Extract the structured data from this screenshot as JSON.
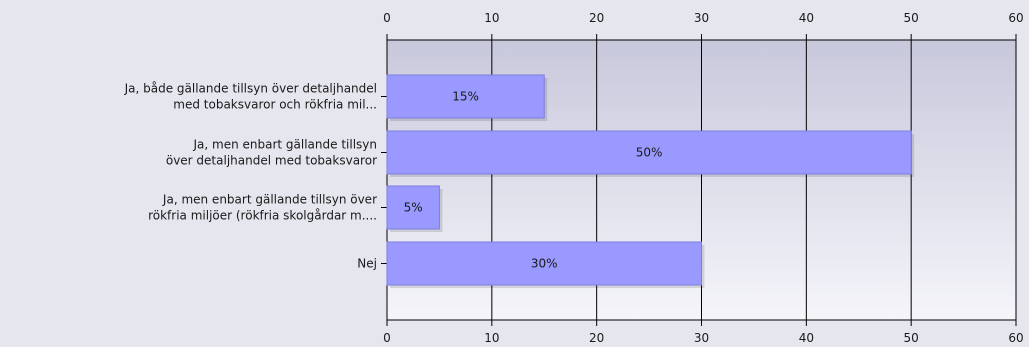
{
  "chart_data": {
    "type": "bar",
    "orientation": "horizontal",
    "categories": [
      [
        "Ja, både gällande tillsyn över detaljhandel",
        "med tobaksvaror och rökfria mil..."
      ],
      [
        "Ja, men enbart gällande tillsyn",
        "över detaljhandel med tobaksvaror"
      ],
      [
        "Ja, men enbart gällande tillsyn över",
        "rökfria miljöer (rökfria skolgårdar m...."
      ],
      [
        "Nej"
      ]
    ],
    "values": [
      15,
      50,
      5,
      30
    ],
    "data_labels": [
      "15%",
      "50%",
      "5%",
      "30%"
    ],
    "xlim": [
      0,
      60
    ],
    "xticks": [
      0,
      10,
      20,
      30,
      40,
      50,
      60
    ],
    "xtick_labels": [
      "0",
      "10",
      "20",
      "30",
      "40",
      "50",
      "60"
    ],
    "x_axis_position": "top and bottom",
    "grid": true,
    "title": "",
    "xlabel": "",
    "ylabel": "",
    "colors": {
      "bar": "#9999ff",
      "bar_edge": "#7d7de0",
      "plot_top": "#c8c8dc",
      "plot_bottom": "#f5f5fa",
      "page_background": "#e6e6ee",
      "grid": "#000000"
    }
  }
}
